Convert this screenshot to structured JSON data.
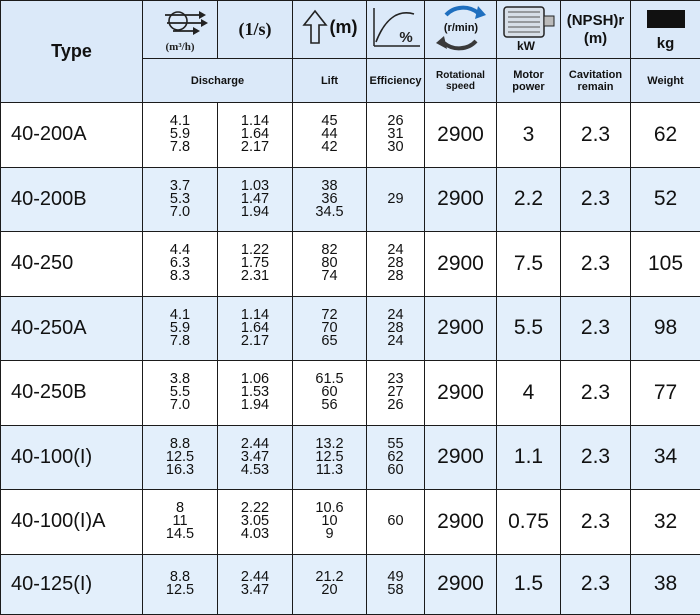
{
  "header": {
    "type_label": "Type",
    "discharge_unit_icon": "m3h",
    "discharge_unit_label": "(1/s)",
    "lift_unit": "(m)",
    "efficiency_unit": "%",
    "speed_unit": "(r/min)",
    "power_unit": "kW",
    "npsh_label": "(NPSH)r",
    "npsh_unit": "(m)",
    "weight_unit": "kg",
    "discharge_label": "Discharge",
    "lift_label": "Lift",
    "efficiency_label": "Efficiency",
    "speed_label_1": "Rotational",
    "speed_label_2": "speed",
    "power_label_1": "Motor",
    "power_label_2": "power",
    "cav_label_1": "Cavitation",
    "cav_label_2": "remain",
    "weight_label": "Weight",
    "icons": [
      "flow-arrows-icon",
      "up-arrow-icon",
      "efficiency-curve-icon",
      "rotation-arrows-icon",
      "motor-icon",
      "weight-block-icon"
    ]
  },
  "rows": [
    {
      "type": "40-200A",
      "m3h": [
        "4.1",
        "5.9",
        "7.8"
      ],
      "ls": [
        "1.14",
        "1.64",
        "2.17"
      ],
      "lift": [
        "45",
        "44",
        "42"
      ],
      "eff": [
        "26",
        "31",
        "30"
      ],
      "speed": "2900",
      "power": "3",
      "npsh": "2.3",
      "weight": "62"
    },
    {
      "type": "40-200B",
      "m3h": [
        "3.7",
        "5.3",
        "7.0"
      ],
      "ls": [
        "1.03",
        "1.47",
        "1.94"
      ],
      "lift": [
        "38",
        "36",
        "34.5"
      ],
      "eff": [
        "29"
      ],
      "speed": "2900",
      "power": "2.2",
      "npsh": "2.3",
      "weight": "52"
    },
    {
      "type": "40-250",
      "m3h": [
        "4.4",
        "6.3",
        "8.3"
      ],
      "ls": [
        "1.22",
        "1.75",
        "2.31"
      ],
      "lift": [
        "82",
        "80",
        "74"
      ],
      "eff": [
        "24",
        "28",
        "28"
      ],
      "speed": "2900",
      "power": "7.5",
      "npsh": "2.3",
      "weight": "105"
    },
    {
      "type": "40-250A",
      "m3h": [
        "4.1",
        "5.9",
        "7.8"
      ],
      "ls": [
        "1.14",
        "1.64",
        "2.17"
      ],
      "lift": [
        "72",
        "70",
        "65"
      ],
      "eff": [
        "24",
        "28",
        "24"
      ],
      "speed": "2900",
      "power": "5.5",
      "npsh": "2.3",
      "weight": "98"
    },
    {
      "type": "40-250B",
      "m3h": [
        "3.8",
        "5.5",
        "7.0"
      ],
      "ls": [
        "1.06",
        "1.53",
        "1.94"
      ],
      "lift": [
        "61.5",
        "60",
        "56"
      ],
      "eff": [
        "23",
        "27",
        "26"
      ],
      "speed": "2900",
      "power": "4",
      "npsh": "2.3",
      "weight": "77"
    },
    {
      "type": "40-100(I)",
      "m3h": [
        "8.8",
        "12.5",
        "16.3"
      ],
      "ls": [
        "2.44",
        "3.47",
        "4.53"
      ],
      "lift": [
        "13.2",
        "12.5",
        "11.3"
      ],
      "eff": [
        "55",
        "62",
        "60"
      ],
      "speed": "2900",
      "power": "1.1",
      "npsh": "2.3",
      "weight": "34"
    },
    {
      "type": "40-100(I)A",
      "m3h": [
        "8",
        "11",
        "14.5"
      ],
      "ls": [
        "2.22",
        "3.05",
        "4.03"
      ],
      "lift": [
        "10.6",
        "10",
        "9"
      ],
      "eff": [
        "60"
      ],
      "speed": "2900",
      "power": "0.75",
      "npsh": "2.3",
      "weight": "32"
    },
    {
      "type": "40-125(I)",
      "m3h": [
        "8.8",
        "12.5"
      ],
      "ls": [
        "2.44",
        "3.47"
      ],
      "lift": [
        "21.2",
        "20"
      ],
      "eff": [
        "49",
        "58"
      ],
      "speed": "2900",
      "power": "1.5",
      "npsh": "2.3",
      "weight": "38"
    }
  ]
}
